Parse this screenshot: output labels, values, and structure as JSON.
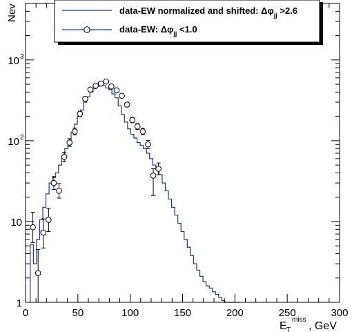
{
  "chart_data": {
    "type": "line",
    "xlabel_main": "E",
    "xlabel_sub": "T",
    "xlabel_sup": "miss",
    "xlabel_unit": ", GeV",
    "ylabel": "Nev",
    "xlim": [
      0,
      300
    ],
    "ylim": [
      1,
      5000
    ],
    "yscale": "log",
    "grid": false,
    "legend_position": "top",
    "xticks": [
      {
        "v": 0,
        "label": "0"
      },
      {
        "v": 50,
        "label": "50"
      },
      {
        "v": 100,
        "label": "100"
      },
      {
        "v": 150,
        "label": "150"
      },
      {
        "v": 200,
        "label": "200"
      },
      {
        "v": 250,
        "label": "250"
      },
      {
        "v": 300,
        "label": "300"
      }
    ],
    "yticks": [
      {
        "v": 1,
        "label": "1"
      },
      {
        "v": 10,
        "label": "10"
      },
      {
        "v": 100,
        "label": "10",
        "exp": "2"
      },
      {
        "v": 1000,
        "label": "10",
        "exp": "3"
      }
    ],
    "series": [
      {
        "name_main": "data-EW normalized and shifted: Δφ",
        "name_sub": "jj",
        "name_tail": " >2.6",
        "style": "histogram",
        "color": "#1a3c8c",
        "bin_width": 3,
        "x": [
          6,
          9,
          12,
          15,
          18,
          21,
          24,
          27,
          30,
          33,
          36,
          39,
          42,
          45,
          48,
          51,
          54,
          57,
          60,
          63,
          66,
          69,
          72,
          75,
          78,
          81,
          84,
          87,
          90,
          93,
          96,
          99,
          102,
          105,
          108,
          111,
          114,
          117,
          120,
          123,
          126,
          129,
          132,
          135,
          138,
          141,
          144,
          147,
          150,
          153,
          156,
          159,
          162,
          165,
          168,
          171,
          174,
          177,
          180,
          183,
          186,
          189,
          192,
          195,
          198,
          201,
          204
        ],
        "y": [
          5.2,
          3.0,
          6.0,
          10.5,
          15,
          22,
          30,
          35,
          40,
          50,
          62,
          80,
          100,
          128,
          160,
          200,
          240,
          300,
          350,
          400,
          440,
          470,
          500,
          480,
          450,
          430,
          380,
          340,
          270,
          210,
          170,
          140,
          120,
          108,
          95,
          88,
          80,
          70,
          60,
          50,
          44,
          38,
          30,
          24,
          19,
          15,
          12,
          9.5,
          7.5,
          6.0,
          4.8,
          3.8,
          3.0,
          2.5,
          2.1,
          1.8,
          1.6,
          1.5,
          1.35,
          1.25,
          1.15,
          1.05,
          1.0,
          1.0,
          1.0,
          1.0,
          1.0
        ]
      },
      {
        "name_main": "data-EW: Δφ",
        "name_sub": "jj",
        "name_tail": " <1.0",
        "style": "markers",
        "color": "#000000",
        "x": [
          7,
          12,
          17,
          22,
          27,
          32,
          37,
          42,
          47,
          52,
          57,
          62,
          67,
          72,
          77,
          82,
          87,
          92,
          97,
          102,
          107,
          112,
          117,
          122,
          127
        ],
        "y": [
          8.5,
          2.3,
          7.3,
          10.5,
          30,
          24,
          63,
          95,
          130,
          215,
          330,
          430,
          480,
          510,
          540,
          470,
          420,
          360,
          280,
          180,
          150,
          130,
          90,
          37,
          45
        ],
        "err_low": [
          3.0,
          1.3,
          2.6,
          3.0,
          5.0,
          4.5,
          8.0,
          10,
          12,
          15,
          18,
          21,
          22,
          23,
          24,
          22,
          21,
          19,
          17,
          13,
          12,
          11,
          10,
          16,
          7
        ],
        "err_high": [
          4.5,
          2.2,
          3.5,
          4.0,
          6.0,
          5.5,
          9.0,
          11,
          13,
          16,
          19,
          22,
          23,
          24,
          25,
          23,
          22,
          20,
          18,
          14,
          13,
          12,
          11,
          8,
          8
        ]
      }
    ]
  }
}
